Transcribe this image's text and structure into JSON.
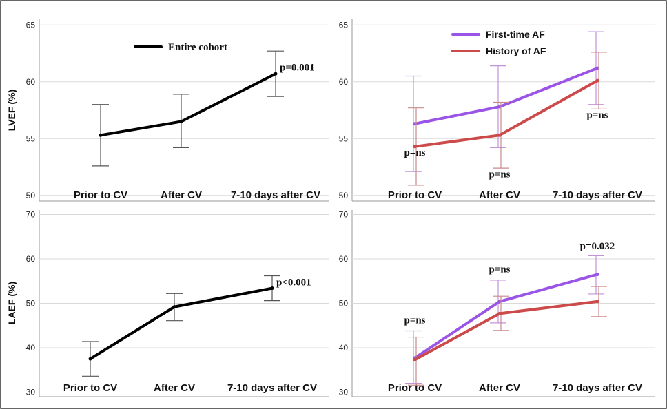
{
  "chart_data": [
    {
      "type": "line",
      "panel": "top-left",
      "ylabel": "LVEF (%)",
      "categories": [
        "Prior to CV",
        "After CV",
        "7-10 days after CV"
      ],
      "ylim": [
        49.5,
        65.5
      ],
      "yticks": [
        50,
        55,
        60,
        65
      ],
      "grid": true,
      "legend_position": "top-center",
      "series": [
        {
          "name": "Entire cohort",
          "color": "#000000",
          "values": [
            55.3,
            56.5,
            60.7
          ],
          "err_low": [
            52.6,
            54.2,
            58.7
          ],
          "err_high": [
            58.0,
            58.9,
            62.7
          ]
        }
      ],
      "annotations": [
        {
          "text": "p=0.001",
          "category": 2,
          "y": 61.0
        }
      ]
    },
    {
      "type": "line",
      "panel": "top-right",
      "ylabel": "",
      "categories": [
        "Prior to CV",
        "After CV",
        "7-10 days after CV"
      ],
      "ylim": [
        49.5,
        65.5
      ],
      "yticks": [
        50,
        55,
        60,
        65
      ],
      "grid": true,
      "legend_position": "top-center",
      "series": [
        {
          "name": "First-time AF",
          "color": "#9b55e6",
          "values": [
            56.3,
            57.8,
            61.2
          ],
          "err_low": [
            52.1,
            54.2,
            58.0
          ],
          "err_high": [
            60.5,
            61.4,
            64.4
          ]
        },
        {
          "name": "History of AF",
          "color": "#cc4a4a",
          "values": [
            54.3,
            55.3,
            60.1
          ],
          "err_low": [
            50.9,
            52.4,
            57.6
          ],
          "err_high": [
            57.7,
            58.2,
            62.6
          ]
        }
      ],
      "annotations": [
        {
          "text": "p=ns",
          "category": 0,
          "y": 53.5
        },
        {
          "text": "p=ns",
          "category": 1,
          "y": 51.6
        },
        {
          "text": "p=ns",
          "category": 2,
          "y": 56.8
        }
      ]
    },
    {
      "type": "line",
      "panel": "bottom-left",
      "ylabel": "LAEF (%)",
      "categories": [
        "Prior to CV",
        "After CV",
        "7-10 days after CV"
      ],
      "ylim": [
        29,
        71
      ],
      "yticks": [
        30,
        40,
        50,
        60,
        70
      ],
      "grid": true,
      "series": [
        {
          "name": "",
          "color": "#000000",
          "values": [
            37.5,
            49.2,
            53.4
          ],
          "err_low": [
            33.6,
            46.1,
            50.6
          ],
          "err_high": [
            41.4,
            52.2,
            56.2
          ]
        }
      ],
      "annotations": [
        {
          "text": "p<0.001",
          "category": 2,
          "y": 54.0
        }
      ]
    },
    {
      "type": "line",
      "panel": "bottom-right",
      "ylabel": "",
      "categories": [
        "Prior to CV",
        "After CV",
        "7-10 days after CV"
      ],
      "ylim": [
        29,
        71
      ],
      "yticks": [
        30,
        40,
        50,
        60,
        70
      ],
      "grid": true,
      "series": [
        {
          "name": "",
          "color": "#9b55e6",
          "values": [
            37.7,
            50.4,
            56.5
          ],
          "err_low": [
            32.0,
            45.6,
            52.1
          ],
          "err_high": [
            43.8,
            55.2,
            60.7
          ]
        },
        {
          "name": "",
          "color": "#cc4a4a",
          "values": [
            37.3,
            47.7,
            50.4
          ],
          "err_low": [
            31.6,
            43.9,
            47.0
          ],
          "err_high": [
            42.4,
            51.6,
            53.8
          ]
        }
      ],
      "annotations": [
        {
          "text": "p=ns",
          "category": 0,
          "y": 45.5
        },
        {
          "text": "p=ns",
          "category": 1,
          "y": 57.0
        },
        {
          "text": "p=0.032",
          "category": 2,
          "y": 62.2
        }
      ]
    }
  ]
}
